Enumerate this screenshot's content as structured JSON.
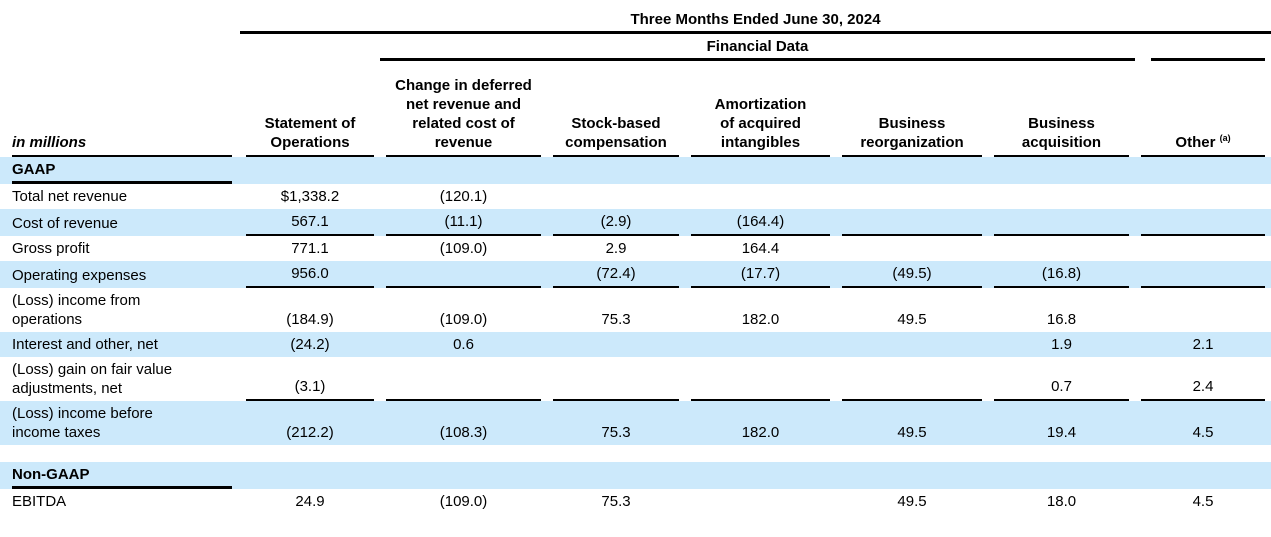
{
  "table": {
    "period": "Three Months Ended June 30, 2024",
    "group": "Financial Data",
    "unit_label": "in millions",
    "columns": [
      {
        "label": "Statement of\nOperations",
        "sup": ""
      },
      {
        "label": "Change in deferred\nnet revenue and\nrelated cost of\nrevenue",
        "sup": ""
      },
      {
        "label": "Stock-based\ncompensation",
        "sup": ""
      },
      {
        "label": "Amortization\nof acquired\nintangibles",
        "sup": ""
      },
      {
        "label": "Business\nreorganization",
        "sup": ""
      },
      {
        "label": "Business\nacquisition",
        "sup": ""
      },
      {
        "label": "Other",
        "sup": "(a)"
      }
    ],
    "rows": [
      {
        "type": "section",
        "label": "GAAP",
        "stripe": true
      },
      {
        "type": "data",
        "label": "Total net revenue",
        "stripe": false,
        "bold": false,
        "sumline": false,
        "values": [
          "$1,338.2",
          "(120.1)",
          "",
          "",
          "",
          "",
          ""
        ]
      },
      {
        "type": "data",
        "label": "Cost of revenue",
        "stripe": true,
        "bold": false,
        "sumline": true,
        "values": [
          "567.1",
          "(11.1)",
          "(2.9)",
          "(164.4)",
          "",
          "",
          ""
        ]
      },
      {
        "type": "data",
        "label": "Gross profit",
        "stripe": false,
        "bold": true,
        "sumline": false,
        "values": [
          "771.1",
          "(109.0)",
          "2.9",
          "164.4",
          "",
          "",
          ""
        ]
      },
      {
        "type": "data",
        "label": "Operating expenses",
        "stripe": true,
        "bold": false,
        "sumline": true,
        "values": [
          "956.0",
          "",
          "(72.4)",
          "(17.7)",
          "(49.5)",
          "(16.8)",
          ""
        ]
      },
      {
        "type": "data",
        "label": "(Loss) income from\noperations",
        "stripe": false,
        "bold": true,
        "sumline": false,
        "values": [
          "(184.9)",
          "(109.0)",
          "75.3",
          "182.0",
          "49.5",
          "16.8",
          ""
        ]
      },
      {
        "type": "data",
        "label": "Interest and other, net",
        "stripe": true,
        "bold": false,
        "sumline": false,
        "values": [
          "(24.2)",
          "0.6",
          "",
          "",
          "",
          "1.9",
          "2.1"
        ]
      },
      {
        "type": "data",
        "label": "(Loss) gain on fair value\nadjustments, net",
        "stripe": false,
        "bold": false,
        "sumline": true,
        "values": [
          "(3.1)",
          "",
          "",
          "",
          "",
          "0.7",
          "2.4"
        ]
      },
      {
        "type": "data",
        "label": "(Loss) income before\nincome taxes",
        "stripe": true,
        "bold": true,
        "sumline": false,
        "values": [
          "(212.2)",
          "(108.3)",
          "75.3",
          "182.0",
          "49.5",
          "19.4",
          "4.5"
        ]
      },
      {
        "type": "spacer"
      },
      {
        "type": "section",
        "label": "Non-GAAP",
        "stripe": true
      },
      {
        "type": "data",
        "label": "EBITDA",
        "stripe": false,
        "bold": true,
        "sumline": false,
        "values": [
          "24.9",
          "(109.0)",
          "75.3",
          "",
          "49.5",
          "18.0",
          "4.5"
        ]
      }
    ]
  },
  "colors": {
    "stripe": "#cce9fb",
    "rule": "#000000",
    "text": "#000000"
  }
}
